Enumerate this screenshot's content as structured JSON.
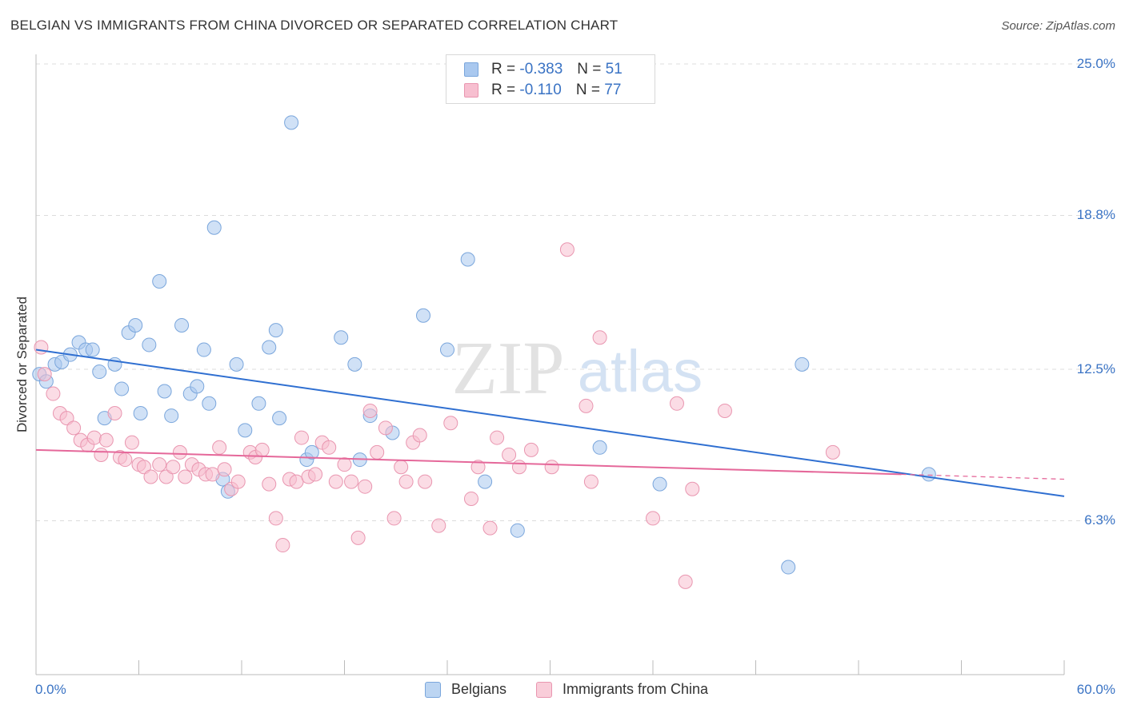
{
  "title": "BELGIAN VS IMMIGRANTS FROM CHINA DIVORCED OR SEPARATED CORRELATION CHART",
  "source": "Source: ZipAtlas.com",
  "watermark": {
    "zip": "ZIP",
    "atlas": "atlas"
  },
  "legend_top": [
    {
      "r_label": "R =",
      "r_value": "-0.383",
      "n_label": "N =",
      "n_value": "51",
      "color": "#a9c8ef",
      "border": "#7aa6dc"
    },
    {
      "r_label": "R =",
      "r_value": "-0.110",
      "n_label": "N =",
      "n_value": "77",
      "color": "#f7bfd0",
      "border": "#e996b0"
    }
  ],
  "legend_bottom": [
    {
      "label": "Belgians",
      "color": "#bcd5f2",
      "border": "#7aa6dc"
    },
    {
      "label": "Immigrants from China",
      "color": "#f9cdd9",
      "border": "#e996b0"
    }
  ],
  "chart_data": {
    "type": "scatter",
    "title": "BELGIAN VS IMMIGRANTS FROM CHINA DIVORCED OR SEPARATED CORRELATION CHART",
    "xlabel": "",
    "ylabel": "Divorced or Separated",
    "xlim": [
      0,
      60
    ],
    "ylim": [
      0,
      25.8
    ],
    "x_tick_labels": [
      "0.0%",
      "60.0%"
    ],
    "y_ticks": [
      6.3,
      12.5,
      18.8,
      25.0
    ],
    "y_tick_labels": [
      "6.3%",
      "12.5%",
      "18.8%",
      "25.0%"
    ],
    "grid": true,
    "legend_position": "top-center",
    "series": [
      {
        "name": "Belgians",
        "color": "#a9c8ef",
        "stroke": "#7aa6dc",
        "line_color": "#2f6fd1",
        "trend": {
          "x0": 0,
          "y0": 13.3,
          "x1": 60,
          "y1": 7.3
        },
        "points": [
          [
            0.2,
            12.3
          ],
          [
            0.6,
            12.0
          ],
          [
            1.1,
            12.7
          ],
          [
            1.5,
            12.8
          ],
          [
            2.0,
            13.1
          ],
          [
            2.5,
            13.6
          ],
          [
            2.9,
            13.3
          ],
          [
            3.3,
            13.3
          ],
          [
            3.7,
            12.4
          ],
          [
            4.0,
            10.5
          ],
          [
            4.6,
            12.7
          ],
          [
            5.0,
            11.7
          ],
          [
            5.4,
            14.0
          ],
          [
            5.8,
            14.3
          ],
          [
            6.1,
            10.7
          ],
          [
            6.6,
            13.5
          ],
          [
            7.2,
            16.1
          ],
          [
            7.5,
            11.6
          ],
          [
            7.9,
            10.6
          ],
          [
            8.5,
            14.3
          ],
          [
            9.0,
            11.5
          ],
          [
            9.4,
            11.8
          ],
          [
            9.8,
            13.3
          ],
          [
            10.1,
            11.1
          ],
          [
            10.4,
            18.3
          ],
          [
            10.9,
            8.0
          ],
          [
            11.2,
            7.5
          ],
          [
            11.7,
            12.7
          ],
          [
            12.2,
            10.0
          ],
          [
            13.0,
            11.1
          ],
          [
            13.6,
            13.4
          ],
          [
            14.0,
            14.1
          ],
          [
            14.2,
            10.5
          ],
          [
            14.9,
            22.6
          ],
          [
            15.8,
            8.8
          ],
          [
            16.1,
            9.1
          ],
          [
            17.8,
            13.8
          ],
          [
            18.6,
            12.7
          ],
          [
            18.9,
            8.8
          ],
          [
            19.5,
            10.6
          ],
          [
            20.8,
            9.9
          ],
          [
            22.6,
            14.7
          ],
          [
            24.0,
            13.3
          ],
          [
            25.2,
            17.0
          ],
          [
            26.2,
            7.9
          ],
          [
            28.1,
            5.9
          ],
          [
            32.9,
            9.3
          ],
          [
            36.4,
            7.8
          ],
          [
            43.9,
            4.4
          ],
          [
            44.7,
            12.7
          ],
          [
            52.1,
            8.2
          ]
        ]
      },
      {
        "name": "Immigrants from China",
        "color": "#f7bfd0",
        "stroke": "#e996b0",
        "line_color": "#e5689a",
        "trend": {
          "x0": 0,
          "y0": 9.2,
          "x1": 50.5,
          "y1": 8.2
        },
        "trend_dashed": {
          "x0": 50.5,
          "y0": 8.2,
          "x1": 60,
          "y1": 8.0
        },
        "points": [
          [
            0.3,
            13.4
          ],
          [
            0.5,
            12.3
          ],
          [
            1.0,
            11.5
          ],
          [
            1.4,
            10.7
          ],
          [
            1.8,
            10.5
          ],
          [
            2.2,
            10.1
          ],
          [
            2.6,
            9.6
          ],
          [
            3.0,
            9.4
          ],
          [
            3.4,
            9.7
          ],
          [
            3.8,
            9.0
          ],
          [
            4.1,
            9.6
          ],
          [
            4.6,
            10.7
          ],
          [
            4.9,
            8.9
          ],
          [
            5.2,
            8.8
          ],
          [
            5.6,
            9.5
          ],
          [
            6.0,
            8.6
          ],
          [
            6.3,
            8.5
          ],
          [
            6.7,
            8.1
          ],
          [
            7.2,
            8.6
          ],
          [
            7.6,
            8.1
          ],
          [
            8.0,
            8.5
          ],
          [
            8.4,
            9.1
          ],
          [
            8.7,
            8.1
          ],
          [
            9.1,
            8.6
          ],
          [
            9.5,
            8.4
          ],
          [
            9.9,
            8.2
          ],
          [
            10.3,
            8.2
          ],
          [
            10.7,
            9.3
          ],
          [
            11.0,
            8.4
          ],
          [
            11.4,
            7.6
          ],
          [
            11.8,
            7.9
          ],
          [
            12.5,
            9.1
          ],
          [
            12.8,
            8.9
          ],
          [
            13.2,
            9.2
          ],
          [
            13.6,
            7.8
          ],
          [
            14.0,
            6.4
          ],
          [
            14.4,
            5.3
          ],
          [
            14.8,
            8.0
          ],
          [
            15.2,
            7.9
          ],
          [
            15.5,
            9.7
          ],
          [
            15.9,
            8.1
          ],
          [
            16.3,
            8.2
          ],
          [
            16.7,
            9.5
          ],
          [
            17.1,
            9.3
          ],
          [
            17.5,
            7.9
          ],
          [
            18.0,
            8.6
          ],
          [
            18.4,
            7.9
          ],
          [
            18.8,
            5.6
          ],
          [
            19.2,
            7.7
          ],
          [
            19.5,
            10.8
          ],
          [
            19.9,
            9.1
          ],
          [
            20.4,
            10.1
          ],
          [
            20.9,
            6.4
          ],
          [
            21.3,
            8.5
          ],
          [
            21.6,
            7.9
          ],
          [
            22.0,
            9.5
          ],
          [
            22.4,
            9.8
          ],
          [
            22.7,
            7.9
          ],
          [
            23.5,
            6.1
          ],
          [
            24.2,
            10.3
          ],
          [
            25.4,
            7.2
          ],
          [
            25.8,
            8.5
          ],
          [
            26.5,
            6.0
          ],
          [
            26.9,
            9.7
          ],
          [
            27.6,
            9.0
          ],
          [
            28.2,
            8.5
          ],
          [
            28.9,
            9.2
          ],
          [
            30.1,
            8.5
          ],
          [
            31.0,
            17.4
          ],
          [
            32.1,
            11.0
          ],
          [
            32.4,
            7.9
          ],
          [
            32.9,
            13.8
          ],
          [
            36.0,
            6.4
          ],
          [
            37.4,
            11.1
          ],
          [
            37.9,
            3.8
          ],
          [
            38.3,
            7.6
          ],
          [
            40.2,
            10.8
          ],
          [
            46.5,
            9.1
          ]
        ]
      }
    ]
  }
}
